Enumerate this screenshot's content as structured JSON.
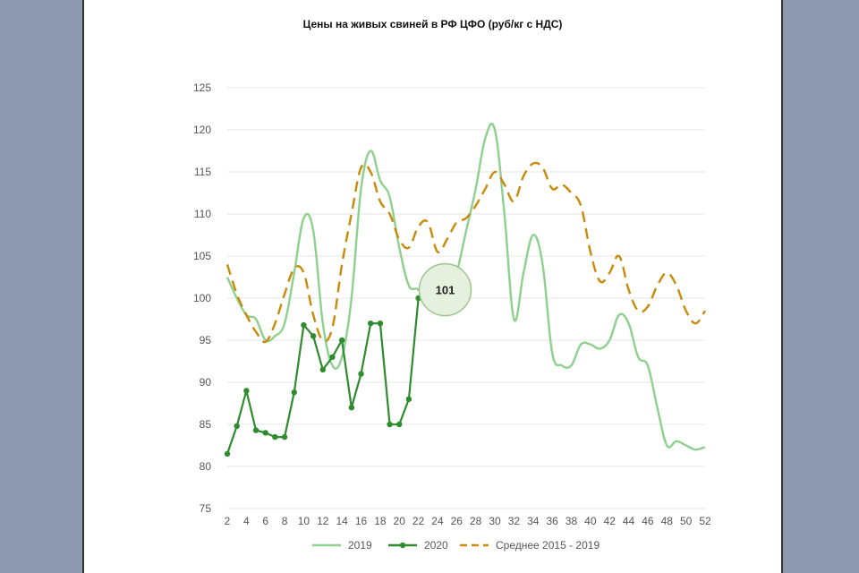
{
  "chart_data": {
    "type": "line",
    "title": "Цены на живых свиней в РФ ЦФО (руб/кг с НДС)",
    "xlabel": "",
    "ylabel": "",
    "ylim": [
      75,
      125
    ],
    "yticks": [
      75,
      80,
      85,
      90,
      95,
      100,
      105,
      110,
      115,
      120,
      125
    ],
    "xlim": [
      2,
      52
    ],
    "xticks": [
      2,
      4,
      6,
      8,
      10,
      12,
      14,
      16,
      18,
      20,
      22,
      24,
      26,
      28,
      30,
      32,
      34,
      36,
      38,
      40,
      42,
      44,
      46,
      48,
      50,
      52
    ],
    "grid": "horizontal",
    "legend_position": "bottom",
    "annotation": {
      "text": "101",
      "x": 24.8,
      "y": 101
    },
    "series": [
      {
        "name": "2019",
        "color": "#8ed08e",
        "style": "solid",
        "x": [
          2,
          3,
          4,
          5,
          6,
          7,
          8,
          9,
          10,
          11,
          12,
          13,
          14,
          15,
          16,
          17,
          18,
          19,
          20,
          21,
          22,
          23,
          24,
          25,
          26,
          27,
          28,
          29,
          30,
          31,
          32,
          33,
          34,
          35,
          36,
          37,
          38,
          39,
          40,
          41,
          42,
          43,
          44,
          45,
          46,
          47,
          48,
          49,
          50,
          51,
          52
        ],
        "values": [
          102.5,
          100,
          98,
          97.5,
          95,
          95.5,
          97,
          103,
          109.5,
          108,
          97,
          92,
          93,
          100,
          113,
          117.5,
          114,
          112,
          106,
          101.5,
          101,
          99,
          98.5,
          100,
          103,
          108,
          113,
          119,
          120,
          110,
          97.5,
          103,
          107.5,
          104,
          93.5,
          92,
          92,
          94.5,
          94.5,
          94,
          95,
          98,
          97,
          93,
          92,
          87,
          82.5,
          83,
          82.5,
          82,
          82.3
        ]
      },
      {
        "name": "2020",
        "color": "#2e8b2e",
        "style": "solid-markers",
        "x": [
          2,
          3,
          4,
          5,
          6,
          7,
          8,
          9,
          10,
          11,
          12,
          13,
          14,
          15,
          16,
          17,
          18,
          19,
          20,
          21,
          22
        ],
        "values": [
          81.5,
          84.8,
          89,
          84.3,
          84,
          83.5,
          83.5,
          88.8,
          96.8,
          95.5,
          91.5,
          93,
          95,
          87,
          91,
          97,
          97,
          85,
          85,
          88,
          100
        ]
      },
      {
        "name": "Среднее 2015 - 2019",
        "color": "#c98a0a",
        "style": "dashed",
        "x": [
          2,
          3,
          4,
          5,
          6,
          7,
          8,
          9,
          10,
          11,
          12,
          13,
          14,
          15,
          16,
          17,
          18,
          19,
          20,
          21,
          22,
          23,
          24,
          25,
          26,
          27,
          28,
          29,
          30,
          31,
          32,
          33,
          34,
          35,
          36,
          37,
          38,
          39,
          40,
          41,
          42,
          43,
          44,
          45,
          46,
          47,
          48,
          49,
          50,
          51,
          52
        ],
        "values": [
          104,
          100.5,
          98,
          96,
          94.8,
          97,
          100.5,
          103.5,
          103,
          98,
          95,
          96.5,
          104,
          110,
          115.5,
          115,
          111.5,
          110,
          107,
          106,
          108.5,
          109,
          105.5,
          107,
          109,
          109.5,
          111,
          113,
          115,
          113.5,
          111.5,
          114.5,
          116,
          115.5,
          113,
          113.5,
          112.5,
          111,
          105.5,
          102,
          103,
          105,
          101,
          98.5,
          99,
          101.5,
          103,
          101.5,
          98.5,
          97,
          98.5
        ]
      }
    ]
  }
}
